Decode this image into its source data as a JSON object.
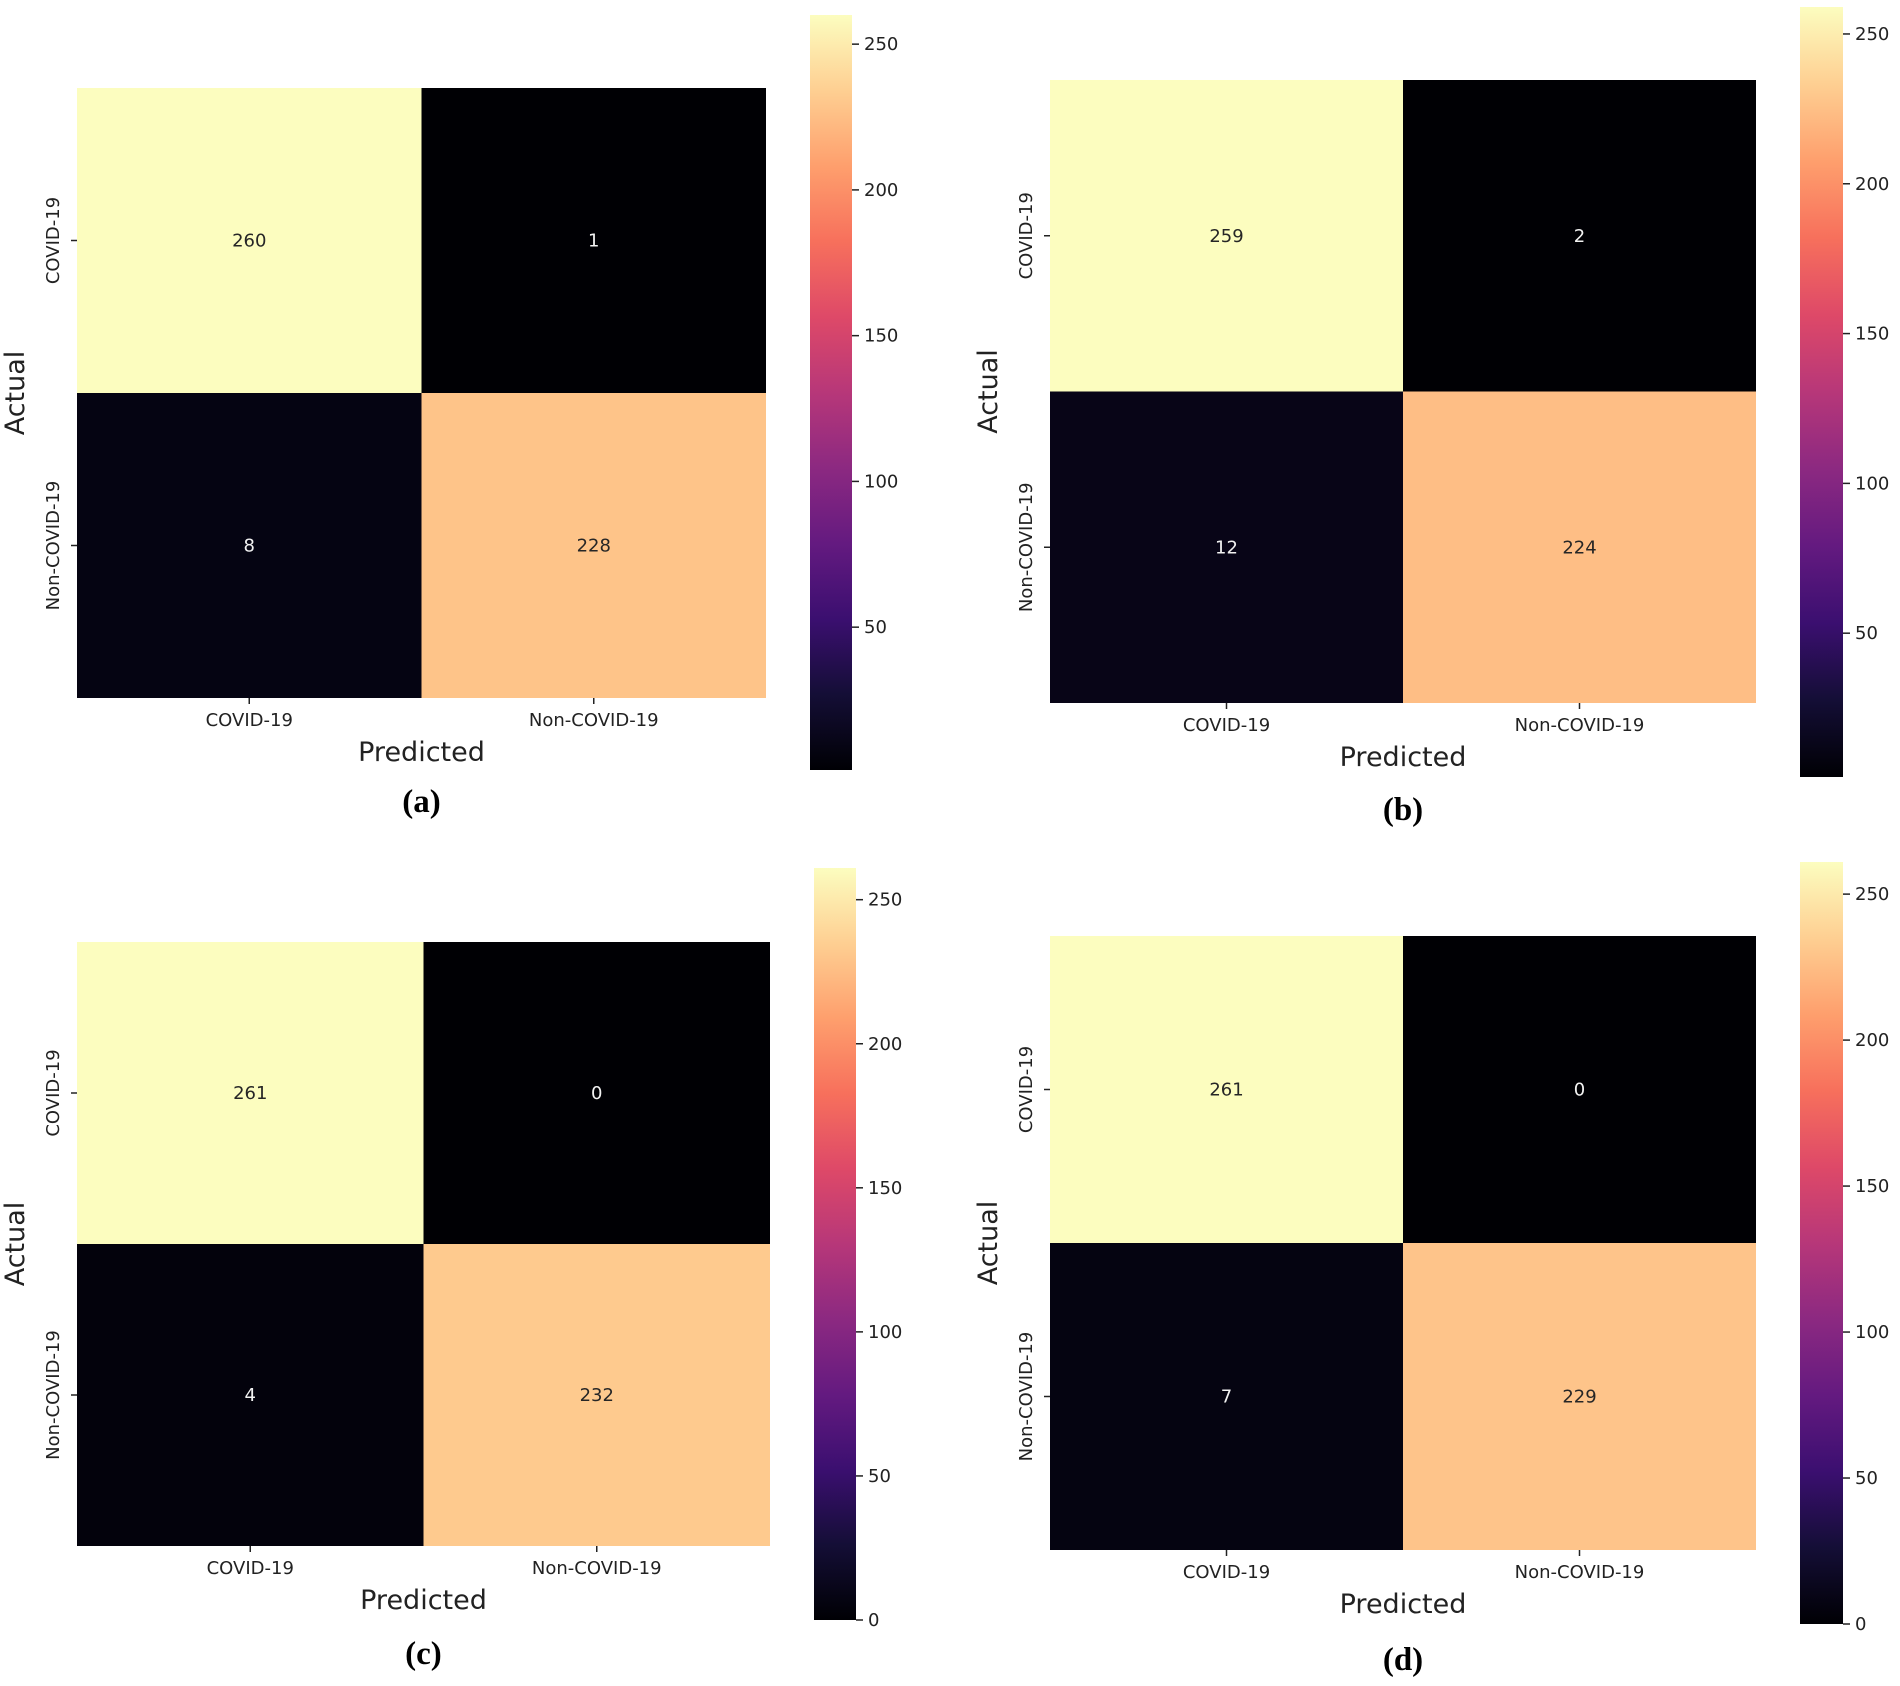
{
  "chart_data": [
    {
      "type": "heatmap",
      "panel_label": "(a)",
      "xlabel": "Predicted",
      "ylabel": "Actual",
      "x_categories": [
        "COVID-19",
        "Non-COVID-19"
      ],
      "y_categories": [
        "COVID-19",
        "Non-COVID-19"
      ],
      "values": [
        [
          260,
          1
        ],
        [
          8,
          228
        ]
      ],
      "colormap": "magma",
      "colorbar": {
        "vmin": 1,
        "vmax": 260,
        "ticks": [
          50,
          100,
          150,
          200,
          250
        ]
      }
    },
    {
      "type": "heatmap",
      "panel_label": "(b)",
      "xlabel": "Predicted",
      "ylabel": "Actual",
      "x_categories": [
        "COVID-19",
        "Non-COVID-19"
      ],
      "y_categories": [
        "COVID-19",
        "Non-COVID-19"
      ],
      "values": [
        [
          259,
          2
        ],
        [
          12,
          224
        ]
      ],
      "colormap": "magma",
      "colorbar": {
        "vmin": 2,
        "vmax": 259,
        "ticks": [
          50,
          100,
          150,
          200,
          250
        ]
      }
    },
    {
      "type": "heatmap",
      "panel_label": "(c)",
      "xlabel": "Predicted",
      "ylabel": "Actual",
      "x_categories": [
        "COVID-19",
        "Non-COVID-19"
      ],
      "y_categories": [
        "COVID-19",
        "Non-COVID-19"
      ],
      "values": [
        [
          261,
          0
        ],
        [
          4,
          232
        ]
      ],
      "colormap": "magma",
      "colorbar": {
        "vmin": 0,
        "vmax": 261,
        "ticks": [
          0,
          50,
          100,
          150,
          200,
          250
        ]
      }
    },
    {
      "type": "heatmap",
      "panel_label": "(d)",
      "xlabel": "Predicted",
      "ylabel": "Actual",
      "x_categories": [
        "COVID-19",
        "Non-COVID-19"
      ],
      "y_categories": [
        "COVID-19",
        "Non-COVID-19"
      ],
      "values": [
        [
          261,
          0
        ],
        [
          7,
          229
        ]
      ],
      "colormap": "magma",
      "colorbar": {
        "vmin": 0,
        "vmax": 261,
        "ticks": [
          0,
          50,
          100,
          150,
          200,
          250
        ]
      }
    }
  ]
}
